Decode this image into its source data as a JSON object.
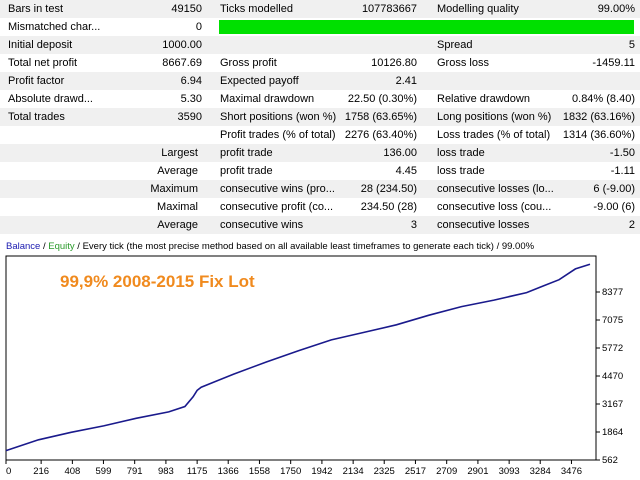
{
  "summary_rows": [
    {
      "shade": true,
      "l1": "Bars in test",
      "v1": "49150",
      "l2": "Ticks modelled",
      "v2": "107783667",
      "l3": "Modelling quality",
      "v3": "99.00%"
    },
    {
      "shade": false,
      "l1": "Mismatched char...",
      "v1": "0",
      "bar": true,
      "quality_fraction": 0.99
    },
    {
      "shade": true,
      "l1": "Initial deposit",
      "v1": "1000.00",
      "l2": "",
      "v2": "",
      "l3": "Spread",
      "v3": "5"
    },
    {
      "shade": false,
      "l1": "Total net profit",
      "v1": "8667.69",
      "l2": "Gross profit",
      "v2": "10126.80",
      "l3": "Gross loss",
      "v3": "-1459.11"
    },
    {
      "shade": true,
      "l1": "Profit factor",
      "v1": "6.94",
      "l2": "Expected payoff",
      "v2": "2.41",
      "l3": "",
      "v3": ""
    },
    {
      "shade": false,
      "l1": "Absolute drawd...",
      "v1": "5.30",
      "l2": "Maximal drawdown",
      "v2": "22.50 (0.30%)",
      "l3": "Relative drawdown",
      "v3": "0.84% (8.40)"
    },
    {
      "shade": true,
      "l1": "Total trades",
      "v1": "3590",
      "l2": "Short positions (won %)",
      "v2": "1758 (63.65%)",
      "l3": "Long positions (won %)",
      "v3": "1832 (63.16%)"
    },
    {
      "shade": false,
      "l1": "",
      "v1": "",
      "l2": "Profit trades (% of total)",
      "v2": "2276 (63.40%)",
      "l3": "Loss trades (% of total)",
      "v3": "1314 (36.60%)"
    },
    {
      "shade": true,
      "rl": "Largest",
      "l2": "profit trade",
      "v2": "136.00",
      "l3": "loss trade",
      "v3": "-1.50"
    },
    {
      "shade": false,
      "rl": "Average",
      "l2": "profit trade",
      "v2": "4.45",
      "l3": "loss trade",
      "v3": "-1.11"
    },
    {
      "shade": true,
      "rl": "Maximum",
      "l2": "consecutive wins (pro...",
      "v2": "28 (234.50)",
      "l3": "consecutive losses (lo...",
      "v3": "6 (-9.00)"
    },
    {
      "shade": false,
      "rl": "Maximal",
      "l2": "consecutive profit (co...",
      "v2": "234.50 (28)",
      "l3": "consecutive loss (cou...",
      "v3": "-9.00 (6)"
    },
    {
      "shade": true,
      "rl": "Average",
      "l2": "consecutive wins",
      "v2": "3",
      "l3": "consecutive losses",
      "v3": "2"
    }
  ],
  "chart_header": {
    "balance": "Balance",
    "sep": " / ",
    "equity": "Equity",
    "rest": " / Every tick (the most precise method based on all available least timeframes to generate each tick) / 99.00%"
  },
  "chart_title": "99,9% 2008-2015 Fix Lot",
  "colors": {
    "balance_line": "#1a1a8c",
    "title": "#f08a1e",
    "quality_bar": "#00e000"
  },
  "chart_data": {
    "type": "line",
    "title": "99,9% 2008-2015 Fix Lot",
    "x_ticks": [
      "0",
      "216",
      "408",
      "599",
      "791",
      "983",
      "1175",
      "1366",
      "1558",
      "1750",
      "1942",
      "2134",
      "2325",
      "2517",
      "2709",
      "2901",
      "3093",
      "3284",
      "3476"
    ],
    "y_ticks": [
      "562",
      "1864",
      "3167",
      "4470",
      "5772",
      "7075",
      "8377"
    ],
    "xlim": [
      0,
      3590
    ],
    "ylim": [
      562,
      9680
    ],
    "series": [
      {
        "name": "Balance",
        "x": [
          0,
          200,
          400,
          600,
          800,
          1000,
          1100,
          1150,
          1175,
          1200,
          1400,
          1600,
          1800,
          2000,
          2200,
          2400,
          2600,
          2800,
          3000,
          3200,
          3300,
          3400,
          3450,
          3500,
          3590
        ],
        "y": [
          1000,
          1500,
          1850,
          2150,
          2500,
          2800,
          3050,
          3500,
          3800,
          3950,
          4560,
          5120,
          5650,
          6150,
          6500,
          6850,
          7300,
          7700,
          8000,
          8350,
          8650,
          8950,
          9200,
          9450,
          9670
        ]
      }
    ],
    "grid": false
  }
}
